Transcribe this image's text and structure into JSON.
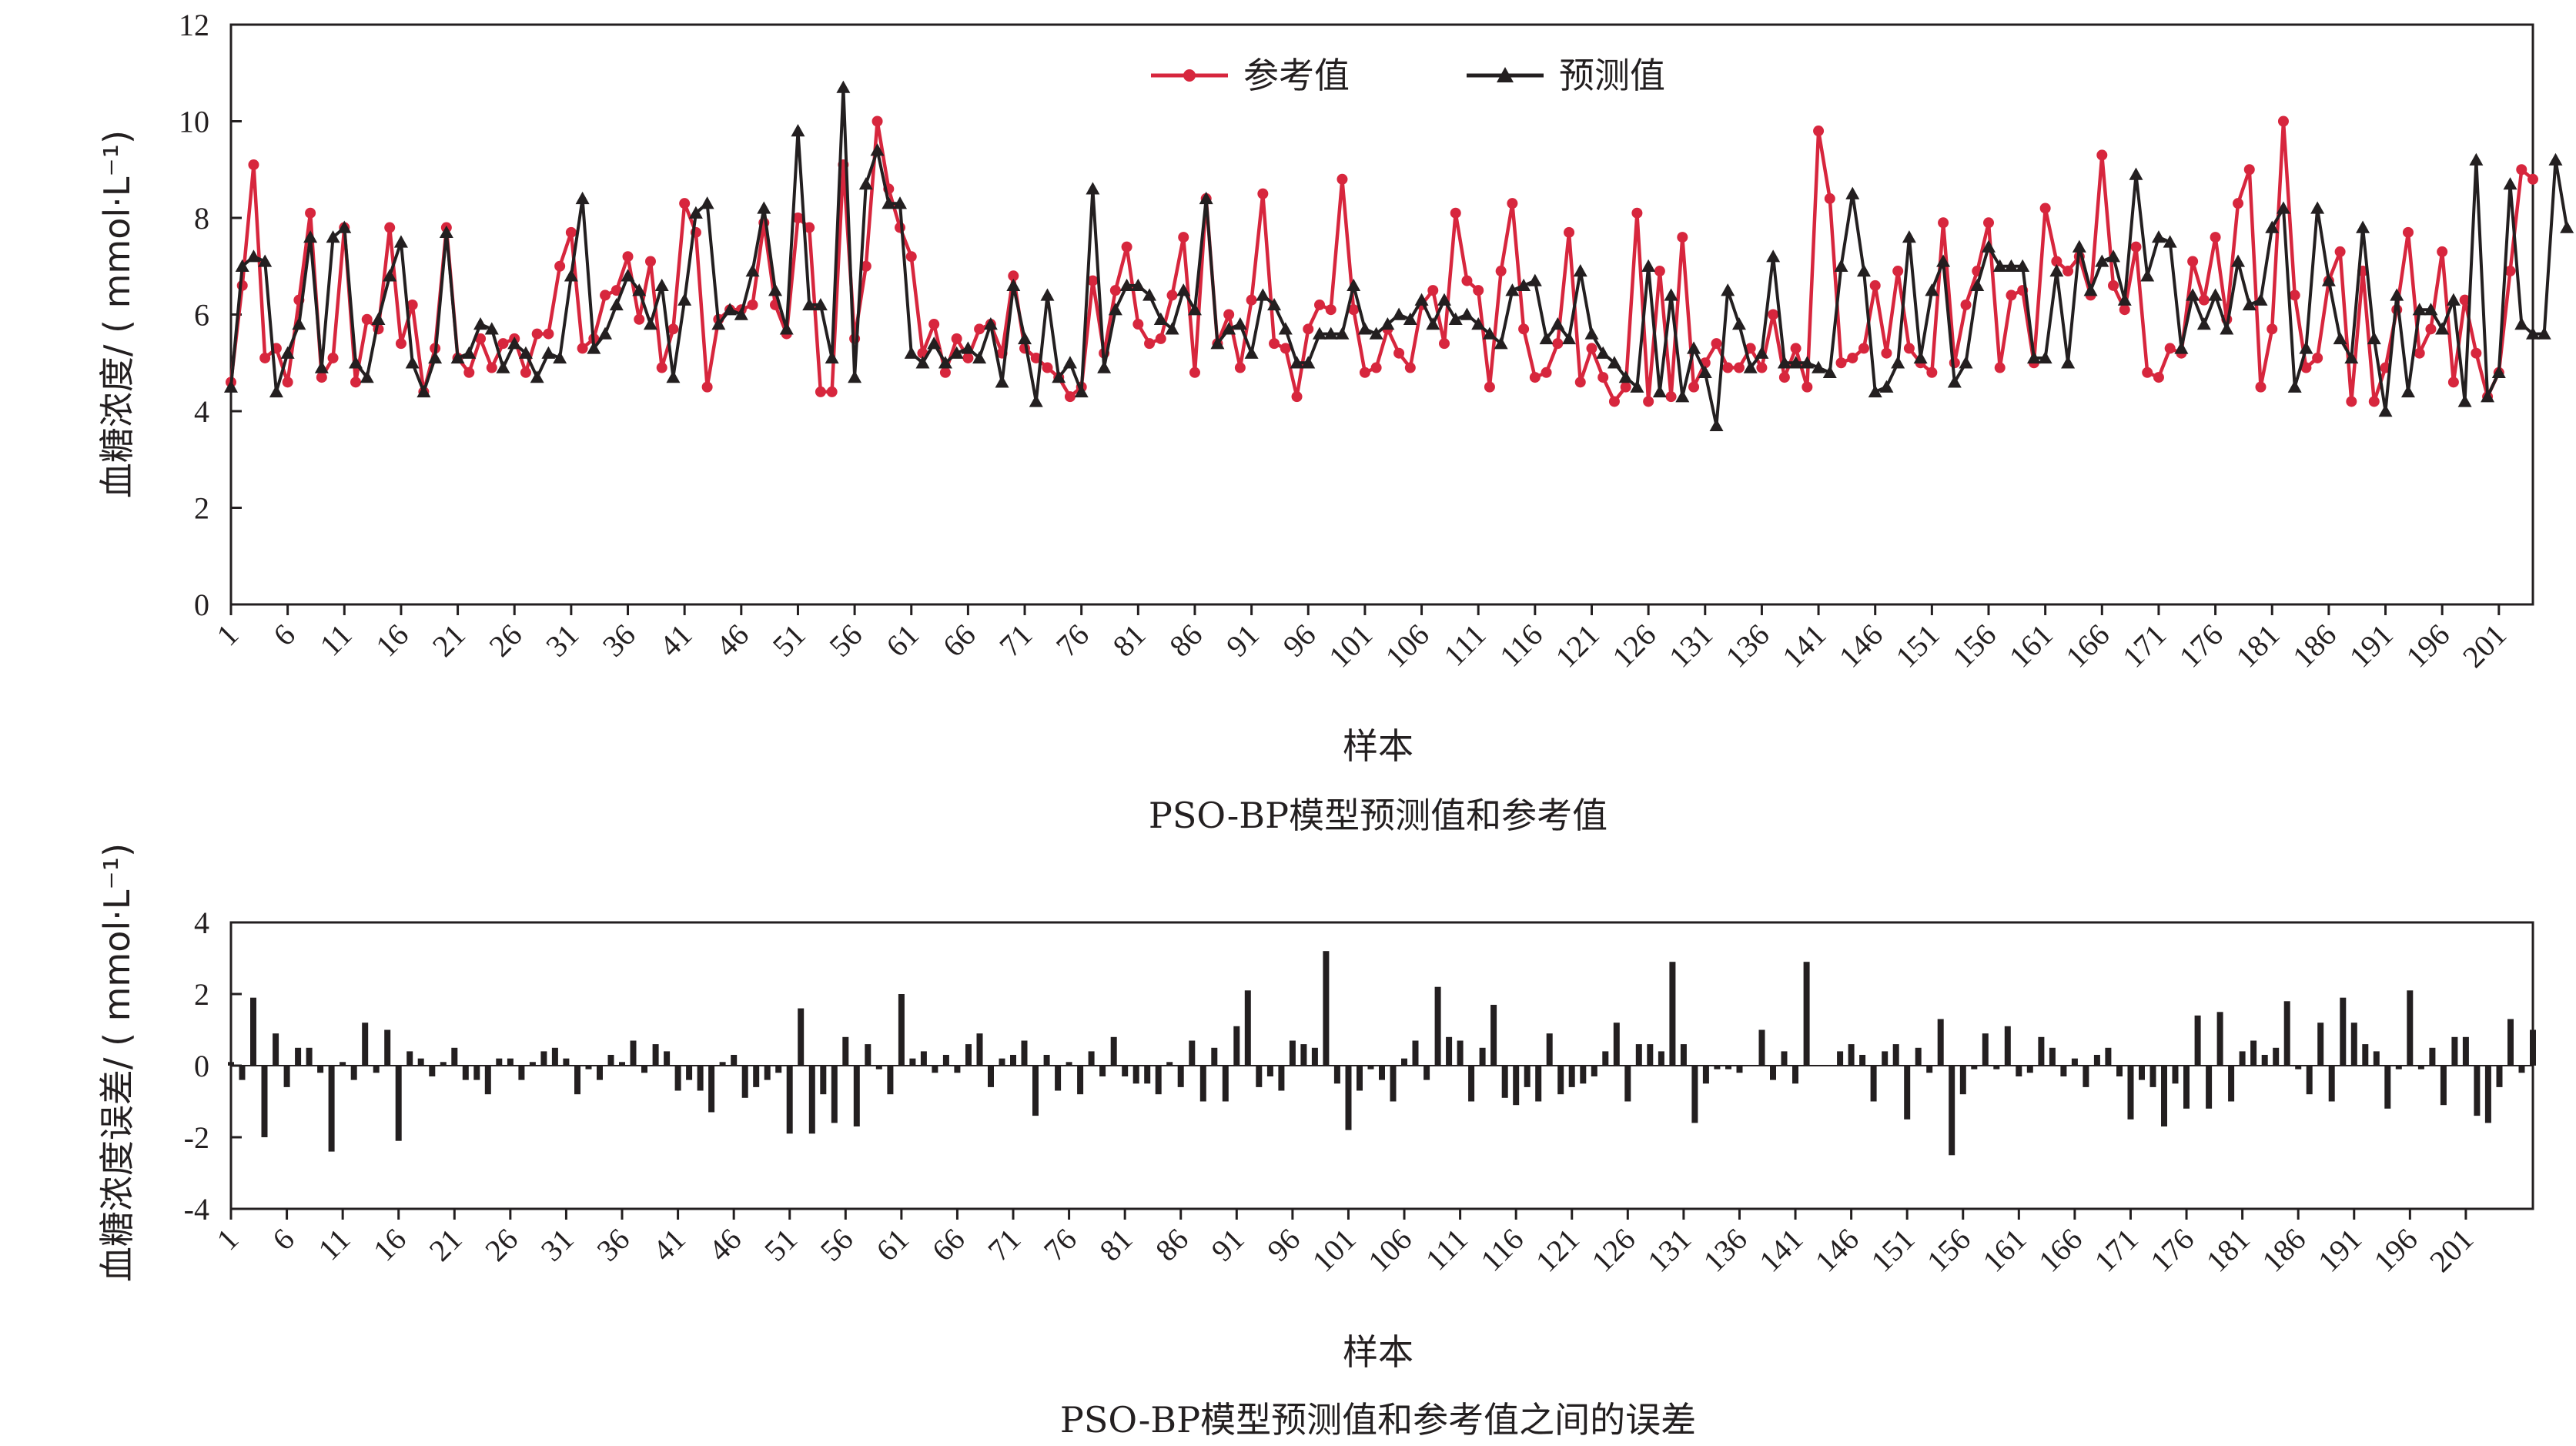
{
  "colors": {
    "reference": "#d7263d",
    "predicted": "#231f20",
    "error_bar": "#231f20",
    "axis": "#231f20"
  },
  "chart_data": [
    {
      "type": "line",
      "caption": "PSO-BP模型预测值和参考值",
      "xlabel": "样本",
      "ylabel": "血糖浓度/ ( mmol·L⁻¹)",
      "ylim": [
        0,
        12
      ],
      "yticks": [
        0,
        2,
        4,
        6,
        8,
        10,
        12
      ],
      "xlim": [
        1,
        205
      ],
      "xtick_labels": [
        "1",
        "6",
        "11",
        "16",
        "21",
        "26",
        "31",
        "36",
        "41",
        "46",
        "51",
        "56",
        "61",
        "66",
        "71",
        "76",
        "81",
        "86",
        "91",
        "96",
        "101",
        "106",
        "111",
        "116",
        "121",
        "126",
        "131",
        "136",
        "141",
        "146",
        "151",
        "156",
        "161",
        "166",
        "171",
        "176",
        "181",
        "186",
        "191",
        "196",
        "201"
      ],
      "legend": "top-center",
      "grid": false,
      "series": [
        {
          "name": "参考值",
          "color": "#d7263d",
          "marker": "circle",
          "values": [
            4.6,
            6.6,
            9.1,
            5.1,
            5.3,
            4.6,
            6.3,
            8.1,
            4.7,
            5.1,
            7.8,
            4.6,
            5.9,
            5.7,
            7.8,
            5.4,
            6.2,
            4.4,
            5.3,
            7.8,
            5.1,
            4.8,
            5.5,
            4.9,
            5.4,
            5.5,
            4.8,
            5.6,
            5.6,
            7.0,
            7.7,
            5.3,
            5.5,
            6.4,
            6.5,
            7.2,
            5.9,
            7.1,
            4.9,
            5.7,
            8.3,
            7.7,
            4.5,
            5.9,
            6.1,
            6.1,
            6.2,
            7.9,
            6.2,
            5.6,
            8.0,
            7.8,
            4.4,
            4.4,
            9.1,
            5.5,
            7.0,
            10.0,
            8.6,
            7.8,
            7.2,
            5.2,
            5.8,
            4.8,
            5.5,
            5.1,
            5.7,
            5.8,
            5.2,
            6.8,
            5.3,
            5.1,
            4.9,
            4.7,
            4.3,
            4.5,
            6.7,
            5.2,
            6.5,
            7.4,
            5.8,
            5.4,
            5.5,
            6.4,
            7.6,
            4.8,
            8.4,
            5.4,
            6.0,
            4.9,
            6.3,
            8.5,
            5.4,
            5.3,
            4.3,
            5.7,
            6.2,
            6.1,
            8.8,
            6.1,
            4.8,
            4.9,
            5.7,
            5.2,
            4.9,
            6.2,
            6.5,
            5.4,
            8.1,
            6.7,
            6.5,
            4.5,
            6.9,
            8.3,
            5.7,
            4.7,
            4.8,
            5.4,
            7.7,
            4.6,
            5.3,
            4.7,
            4.2,
            4.5,
            8.1,
            4.2,
            6.9,
            4.3,
            7.6,
            4.5,
            5.0,
            5.4,
            4.9,
            4.9,
            5.3,
            4.9,
            6.0,
            4.7,
            5.3,
            4.5,
            9.8,
            8.4,
            5.0,
            5.1,
            5.3,
            6.6,
            5.2,
            6.9,
            5.3,
            5.0,
            4.8,
            7.9,
            5.0,
            6.2,
            6.9,
            7.9,
            4.9,
            6.4,
            6.5,
            5.0,
            8.2,
            7.1,
            6.9,
            7.2,
            6.4,
            9.3,
            6.6,
            6.1,
            7.4,
            4.8,
            4.7,
            5.3,
            5.2,
            7.1,
            6.3,
            7.6,
            5.9,
            8.3,
            9.0,
            4.5,
            5.7,
            10.0,
            6.4,
            4.9,
            5.1,
            6.7,
            7.3,
            4.2,
            6.9,
            4.2,
            4.9,
            6.1,
            7.7,
            5.2,
            5.7,
            7.3,
            4.6,
            6.3,
            5.2,
            4.3,
            4.8,
            6.9,
            9.0,
            8.8
          ]
        },
        {
          "name": "预测值",
          "color": "#231f20",
          "marker": "triangle",
          "values": [
            4.5,
            7.0,
            7.2,
            7.1,
            4.4,
            5.2,
            5.8,
            7.6,
            4.9,
            7.6,
            7.8,
            5.0,
            4.7,
            5.9,
            6.8,
            7.5,
            5.0,
            4.4,
            5.1,
            7.7,
            5.1,
            5.2,
            5.8,
            5.7,
            4.9,
            5.4,
            5.2,
            4.7,
            5.2,
            5.1,
            6.8,
            8.4,
            5.3,
            5.6,
            6.2,
            6.8,
            6.5,
            5.8,
            6.6,
            4.7,
            6.3,
            8.1,
            8.3,
            5.8,
            6.1,
            6.0,
            6.9,
            8.2,
            6.5,
            5.7,
            9.8,
            6.2,
            6.2,
            5.1,
            10.7,
            4.7,
            8.7,
            9.4,
            8.3,
            8.3,
            5.2,
            5.0,
            5.4,
            5.0,
            5.2,
            5.3,
            5.1,
            5.8,
            4.6,
            6.6,
            5.5,
            4.2,
            6.4,
            4.7,
            5.0,
            4.4,
            8.6,
            4.9,
            6.1,
            6.6,
            6.6,
            6.4,
            5.9,
            5.7,
            6.5,
            6.1,
            8.4,
            5.4,
            5.7,
            5.8,
            5.2,
            6.4,
            6.2,
            5.7,
            5.0,
            5.0,
            5.6,
            5.6,
            5.6,
            6.6,
            5.7,
            5.6,
            5.8,
            6.0,
            5.9,
            6.3,
            5.8,
            6.3,
            5.9,
            6.0,
            5.8,
            5.6,
            5.4,
            6.5,
            6.6,
            6.7,
            5.5,
            5.8,
            5.5,
            6.9,
            5.6,
            5.2,
            5.0,
            4.7,
            4.5,
            7.0,
            4.4,
            6.4,
            4.3,
            5.3,
            4.8,
            3.7,
            6.5,
            5.8,
            4.9,
            5.2,
            7.2,
            5.0,
            5.0,
            5.0,
            4.9,
            4.8,
            7.0,
            8.5,
            6.9,
            4.4,
            4.5,
            5.0,
            7.6,
            5.1,
            6.5,
            7.1,
            4.6,
            5.0,
            6.6,
            7.4,
            7.0,
            7.0,
            7.0,
            5.1,
            5.1,
            6.9,
            5.0,
            7.4,
            6.5,
            7.1,
            7.2,
            6.3,
            8.9,
            6.8,
            7.6,
            7.5,
            5.3,
            6.4,
            5.8,
            6.4,
            5.7,
            7.1,
            6.2,
            6.3,
            7.8,
            8.2,
            4.5,
            5.3,
            8.2,
            6.7,
            5.5,
            5.1,
            7.8,
            5.5,
            4.0,
            6.4,
            4.4,
            6.1,
            6.1,
            5.7,
            6.3,
            4.2,
            9.2,
            4.3,
            4.8,
            8.7,
            5.8,
            5.6,
            5.6,
            9.2,
            7.8
          ]
        }
      ]
    },
    {
      "type": "bar",
      "caption": "PSO-BP模型预测值和参考值之间的误差",
      "xlabel": "样本",
      "ylabel": "血糖浓度误差/ ( mmol·L⁻¹)",
      "ylim": [
        -4,
        4
      ],
      "yticks": [
        -4,
        -2,
        0,
        2,
        4
      ],
      "xlim": [
        1,
        205
      ],
      "xtick_labels": [
        "1",
        "6",
        "11",
        "16",
        "21",
        "26",
        "31",
        "36",
        "41",
        "46",
        "51",
        "56",
        "61",
        "66",
        "71",
        "76",
        "81",
        "86",
        "91",
        "96",
        "101",
        "106",
        "111",
        "116",
        "121",
        "126",
        "131",
        "136",
        "141",
        "146",
        "151",
        "156",
        "161",
        "166",
        "171",
        "176",
        "181",
        "186",
        "191",
        "196",
        "201"
      ],
      "grid": false,
      "series": [
        {
          "name": "误差",
          "color": "#231f20",
          "values": [
            0.1,
            -0.4,
            1.9,
            -2.0,
            0.9,
            -0.6,
            0.5,
            0.5,
            -0.2,
            -2.4,
            0.1,
            -0.4,
            1.2,
            -0.2,
            1.0,
            -2.1,
            0.4,
            0.2,
            -0.3,
            0.1,
            0.5,
            -0.4,
            -0.4,
            -0.8,
            0.2,
            0.2,
            -0.4,
            0.1,
            0.4,
            0.5,
            0.2,
            -0.8,
            -0.1,
            -0.4,
            0.3,
            0.1,
            0.7,
            -0.2,
            0.6,
            0.4,
            -0.7,
            -0.4,
            -0.7,
            -1.3,
            0.1,
            0.3,
            -0.9,
            -0.6,
            -0.4,
            -0.2,
            -1.9,
            1.6,
            -1.9,
            -0.8,
            -1.6,
            0.8,
            -1.7,
            0.6,
            -0.1,
            -0.8,
            2.0,
            0.2,
            0.4,
            -0.2,
            0.3,
            -0.2,
            0.6,
            0.9,
            -0.6,
            0.2,
            0.3,
            0.7,
            -1.4,
            0.3,
            -0.7,
            0.1,
            -0.8,
            0.4,
            -0.3,
            0.8,
            -0.3,
            -0.5,
            -0.5,
            -0.8,
            0.1,
            -0.6,
            0.7,
            -1.0,
            0.5,
            -1.0,
            1.1,
            2.1,
            -0.6,
            -0.3,
            -0.7,
            0.7,
            0.6,
            0.5,
            3.2,
            -0.5,
            -1.8,
            -0.7,
            -0.1,
            -0.4,
            -1.0,
            0.2,
            0.7,
            -0.4,
            2.2,
            0.8,
            0.7,
            -1.0,
            0.5,
            1.7,
            -0.9,
            -1.1,
            -0.6,
            -1.0,
            0.9,
            -0.8,
            -0.6,
            -0.5,
            -0.3,
            0.4,
            1.2,
            -1.0,
            0.6,
            0.6,
            0.4,
            2.9,
            0.6,
            -1.6,
            -0.5,
            -0.1,
            -0.1,
            -0.2,
            0.0,
            1.0,
            -0.4,
            0.4,
            -0.5,
            2.9,
            0.0,
            0.0,
            0.4,
            0.6,
            0.3,
            -1.0,
            0.4,
            0.6,
            -1.5,
            0.5,
            -0.2,
            1.3,
            -2.5,
            -0.8,
            -0.1,
            0.9,
            -0.1,
            1.1,
            -0.3,
            -0.2,
            0.8,
            0.5,
            -0.3,
            0.2,
            -0.6,
            0.3,
            0.5,
            -0.3,
            -1.5,
            -0.4,
            -0.6,
            -1.7,
            -0.5,
            -1.2,
            1.4,
            -1.2,
            1.5,
            -1.0,
            0.4,
            0.7,
            0.3,
            0.5,
            1.8,
            -0.1,
            -0.8,
            1.2,
            -1.0,
            1.9,
            1.2,
            0.6,
            0.4,
            -1.2,
            -0.1,
            2.1,
            -0.1,
            0.5,
            -1.1,
            0.8,
            0.8,
            -1.4,
            -1.6,
            -0.6,
            1.3,
            -0.2,
            1.0
          ]
        }
      ]
    }
  ]
}
